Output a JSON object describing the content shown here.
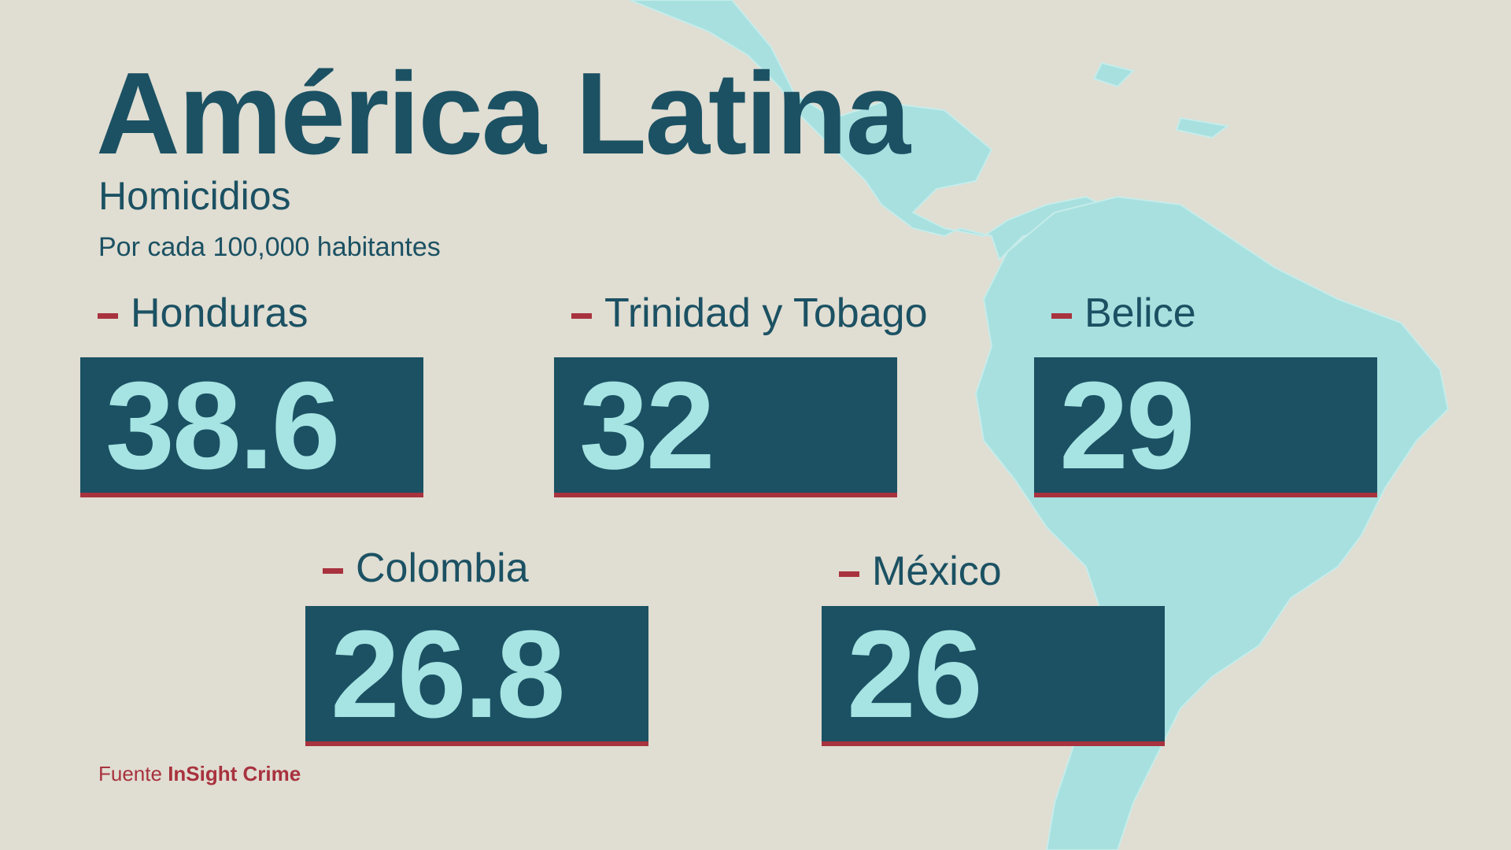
{
  "header": {
    "title": "América Latina",
    "subtitle": "Homicidios",
    "note": "Por cada 100,000 habitantes"
  },
  "items": [
    {
      "name": "Honduras",
      "value": 38.6
    },
    {
      "name": "Trinidad y Tobago",
      "value": 32
    },
    {
      "name": "Belice",
      "value": 29
    },
    {
      "name": "Colombia",
      "value": 26.8
    },
    {
      "name": "México",
      "value": 26
    }
  ],
  "source": {
    "prefix": "Fuente",
    "name": "InSight Crime"
  }
}
